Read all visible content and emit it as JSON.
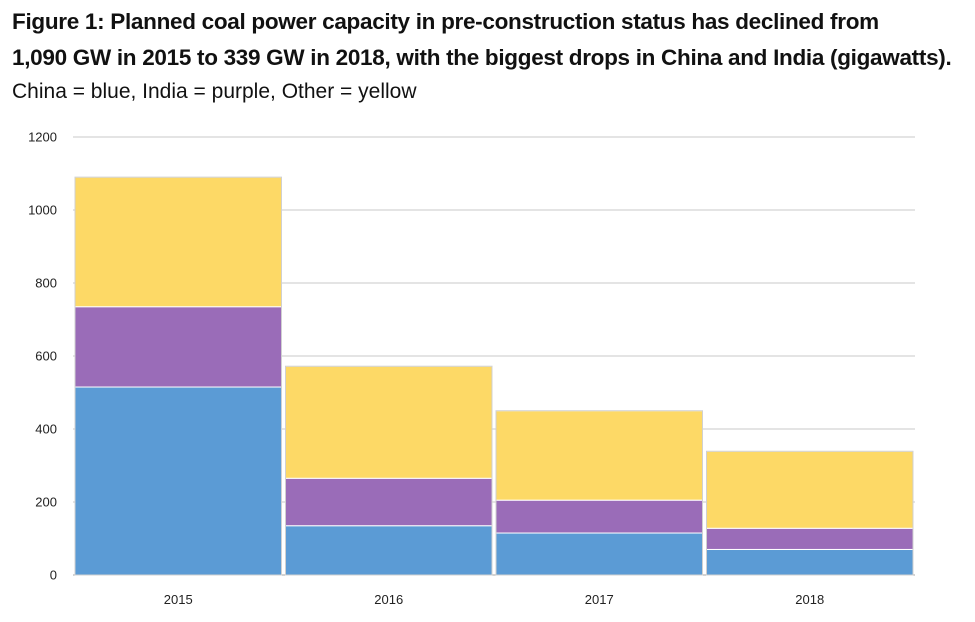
{
  "chart_data": {
    "type": "bar",
    "stacked": true,
    "title_line1": "Figure 1: Planned coal power capacity in pre-construction status has declined from",
    "title_line2": "1,090 GW in 2015 to 339 GW in 2018, with the biggest drops in China and India (gigawatts).",
    "subtitle": "China = blue, India = purple, Other = yellow",
    "categories": [
      "2015",
      "2016",
      "2017",
      "2018"
    ],
    "series": [
      {
        "name": "China",
        "color": "#5B9BD5",
        "values": [
          515,
          135,
          115,
          70
        ]
      },
      {
        "name": "India",
        "color": "#9A6CB8",
        "values": [
          220,
          130,
          90,
          58
        ]
      },
      {
        "name": "Other",
        "color": "#FDD966",
        "values": [
          355,
          307,
          245,
          211
        ]
      }
    ],
    "ylim": [
      0,
      1200
    ],
    "yticks": [
      "0",
      "200",
      "400",
      "600",
      "800",
      "1000",
      "1200"
    ],
    "grid": true,
    "xlabel": "",
    "ylabel": ""
  }
}
